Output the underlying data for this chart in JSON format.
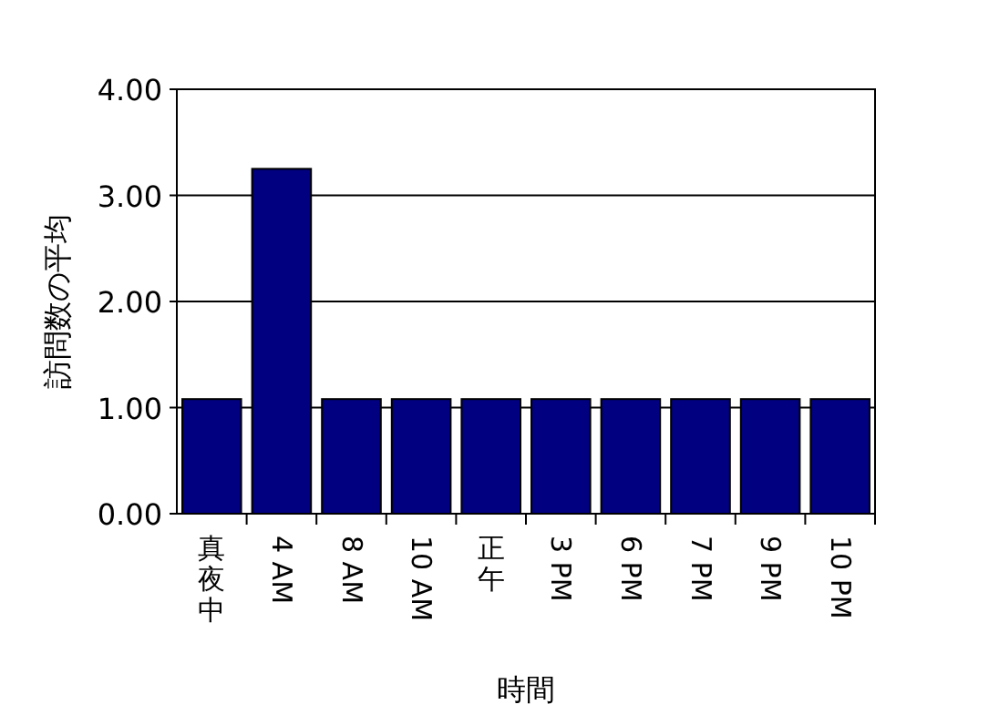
{
  "chart_data": {
    "type": "bar",
    "xlabel": "時間",
    "ylabel": "訪問数の平均",
    "categories": [
      "真夜中",
      "4 AM",
      "8 AM",
      "10 AM",
      "正午",
      "3 PM",
      "6 PM",
      "7 PM",
      "9 PM",
      "10 PM"
    ],
    "values": [
      1.08,
      3.25,
      1.08,
      1.08,
      1.08,
      1.08,
      1.08,
      1.08,
      1.08,
      1.08
    ],
    "color": "#000080",
    "ylim": [
      0,
      4
    ],
    "yticks": [
      {
        "value": 0,
        "label": "0.00"
      },
      {
        "value": 1,
        "label": "1.00"
      },
      {
        "value": 2,
        "label": "2.00"
      },
      {
        "value": 3,
        "label": "3.00"
      },
      {
        "value": 4,
        "label": "4.00"
      }
    ],
    "grid": "y"
  }
}
